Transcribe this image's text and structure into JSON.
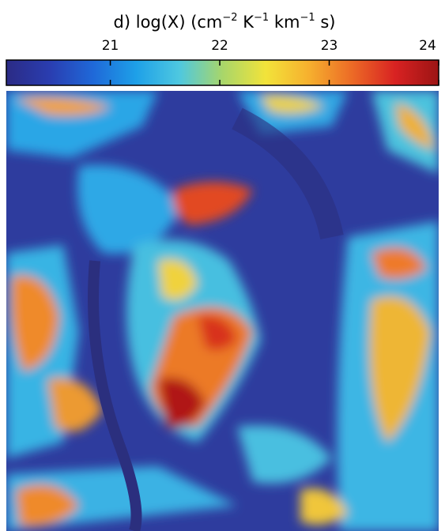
{
  "chart_data": {
    "type": "colorbar-map",
    "title_parts": [
      "d) log(X) (cm",
      "−2",
      " K",
      "−1",
      " km",
      "−1",
      " s)"
    ],
    "xlim": [
      20.05,
      24.0
    ],
    "xticks": [
      21,
      22,
      23,
      24
    ],
    "colormap": [
      "#2b2b85",
      "#2a3db0",
      "#1f68d8",
      "#1ea0e8",
      "#4ec8e0",
      "#a8d66a",
      "#f2e33a",
      "#f6b02e",
      "#ec6a26",
      "#d82222",
      "#9c1414"
    ]
  }
}
